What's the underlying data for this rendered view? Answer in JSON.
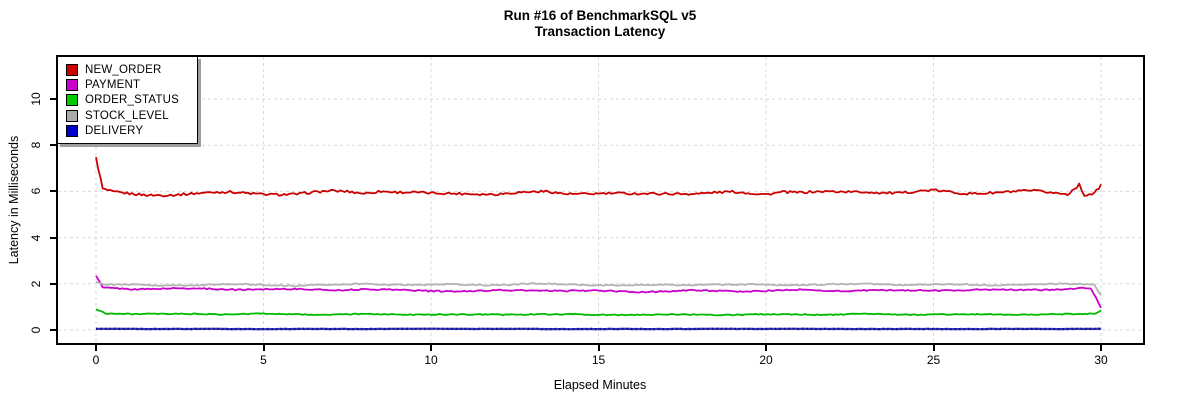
{
  "title": "Run #16 of BenchmarkSQL v5",
  "subtitle": "Transaction Latency",
  "x_axis": {
    "label": "Elapsed Minutes",
    "ticks": [
      0,
      5,
      10,
      15,
      20,
      25,
      30
    ]
  },
  "y_axis": {
    "label": "Latency in Milliseconds",
    "ticks": [
      0,
      2,
      4,
      6,
      8,
      10
    ]
  },
  "legend": {
    "position": "topleft",
    "items": [
      {
        "label": "NEW_ORDER",
        "color": "#cc0000"
      },
      {
        "label": "PAYMENT",
        "color": "#cc00cc"
      },
      {
        "label": "ORDER_STATUS",
        "color": "#00cc00"
      },
      {
        "label": "STOCK_LEVEL",
        "color": "#aaaaaa"
      },
      {
        "label": "DELIVERY",
        "color": "#0000cc"
      }
    ]
  },
  "colors": {
    "grid": "#d9d9d9",
    "plot_border": "#000000",
    "legend_shadow": "#9e9e9e"
  },
  "chart_data": {
    "type": "line",
    "title": "Run #16 of BenchmarkSQL v5",
    "subtitle": "Transaction Latency",
    "xlabel": "Elapsed Minutes",
    "ylabel": "Latency in Milliseconds",
    "xlim": [
      -1.15,
      31.4
    ],
    "ylim": [
      -0.65,
      11.8
    ],
    "x_ticks": [
      0,
      5,
      10,
      15,
      20,
      25,
      30
    ],
    "y_ticks": [
      0,
      2,
      4,
      6,
      8,
      10
    ],
    "grid": "dashed",
    "legend_position": "topleft",
    "series": [
      {
        "name": "NEW_ORDER",
        "color": "#cc0000",
        "width": 1.8,
        "noise": 0.05,
        "wobble": 0.03,
        "points": [
          [
            0,
            7.45
          ],
          [
            0.2,
            6.1
          ],
          [
            0.5,
            5.95
          ],
          [
            1,
            5.88
          ],
          [
            1.5,
            5.84
          ],
          [
            2,
            5.86
          ],
          [
            3,
            5.92
          ],
          [
            4,
            5.95
          ],
          [
            5,
            5.9
          ],
          [
            6,
            5.88
          ],
          [
            7,
            6.0
          ],
          [
            7.5,
            6.0
          ],
          [
            8,
            5.94
          ],
          [
            8.5,
            6.03
          ],
          [
            9,
            5.96
          ],
          [
            10,
            5.9
          ],
          [
            11,
            5.93
          ],
          [
            12,
            5.88
          ],
          [
            13,
            5.96
          ],
          [
            13.5,
            6.0
          ],
          [
            14,
            5.92
          ],
          [
            15,
            5.9
          ],
          [
            16,
            5.88
          ],
          [
            17,
            5.93
          ],
          [
            18,
            5.9
          ],
          [
            19,
            5.96
          ],
          [
            20,
            5.9
          ],
          [
            20.5,
            6.0
          ],
          [
            21,
            5.95
          ],
          [
            22,
            5.97
          ],
          [
            23,
            6.0
          ],
          [
            24,
            5.92
          ],
          [
            25,
            6.03
          ],
          [
            26,
            5.93
          ],
          [
            27,
            5.95
          ],
          [
            28,
            6.0
          ],
          [
            28.5,
            5.96
          ],
          [
            29,
            5.9
          ],
          [
            29.35,
            6.32
          ],
          [
            29.5,
            5.86
          ],
          [
            29.8,
            5.92
          ],
          [
            30,
            6.27
          ]
        ]
      },
      {
        "name": "PAYMENT",
        "color": "#cc00cc",
        "width": 1.8,
        "noise": 0.028,
        "wobble": 0.02,
        "points": [
          [
            0,
            2.35
          ],
          [
            0.2,
            1.82
          ],
          [
            1,
            1.78
          ],
          [
            2,
            1.8
          ],
          [
            3,
            1.78
          ],
          [
            4,
            1.76
          ],
          [
            5,
            1.78
          ],
          [
            6,
            1.75
          ],
          [
            7,
            1.74
          ],
          [
            8,
            1.77
          ],
          [
            9,
            1.72
          ],
          [
            10,
            1.7
          ],
          [
            11,
            1.68
          ],
          [
            12,
            1.7
          ],
          [
            13,
            1.72
          ],
          [
            14,
            1.7
          ],
          [
            15,
            1.68
          ],
          [
            16,
            1.66
          ],
          [
            17,
            1.68
          ],
          [
            18,
            1.7
          ],
          [
            19,
            1.68
          ],
          [
            20,
            1.7
          ],
          [
            21,
            1.72
          ],
          [
            22,
            1.7
          ],
          [
            23,
            1.72
          ],
          [
            24,
            1.7
          ],
          [
            25,
            1.72
          ],
          [
            26,
            1.74
          ],
          [
            27,
            1.72
          ],
          [
            28,
            1.75
          ],
          [
            29,
            1.78
          ],
          [
            29.7,
            1.8
          ],
          [
            30,
            0.95
          ]
        ]
      },
      {
        "name": "ORDER_STATUS",
        "color": "#00bb00",
        "width": 1.8,
        "noise": 0.022,
        "wobble": 0.012,
        "points": [
          [
            0,
            0.9
          ],
          [
            0.3,
            0.73
          ],
          [
            1,
            0.7
          ],
          [
            2,
            0.68
          ],
          [
            3,
            0.7
          ],
          [
            4,
            0.68
          ],
          [
            5,
            0.7
          ],
          [
            6,
            0.68
          ],
          [
            7,
            0.67
          ],
          [
            8,
            0.68
          ],
          [
            9,
            0.67
          ],
          [
            10,
            0.68
          ],
          [
            11,
            0.66
          ],
          [
            12,
            0.67
          ],
          [
            13,
            0.68
          ],
          [
            14,
            0.67
          ],
          [
            15,
            0.66
          ],
          [
            16,
            0.67
          ],
          [
            17,
            0.66
          ],
          [
            18,
            0.67
          ],
          [
            19,
            0.66
          ],
          [
            20,
            0.67
          ],
          [
            21,
            0.68
          ],
          [
            22,
            0.67
          ],
          [
            23,
            0.68
          ],
          [
            24,
            0.67
          ],
          [
            25,
            0.68
          ],
          [
            26,
            0.67
          ],
          [
            27,
            0.68
          ],
          [
            28,
            0.67
          ],
          [
            29,
            0.68
          ],
          [
            29.8,
            0.7
          ],
          [
            30,
            0.85
          ]
        ]
      },
      {
        "name": "STOCK_LEVEL",
        "color": "#b3b3b3",
        "width": 1.8,
        "noise": 0.026,
        "wobble": 0.016,
        "points": [
          [
            0,
            2.1
          ],
          [
            0.3,
            1.97
          ],
          [
            1,
            1.95
          ],
          [
            2,
            1.93
          ],
          [
            3,
            1.95
          ],
          [
            4,
            1.97
          ],
          [
            5,
            1.95
          ],
          [
            6,
            1.93
          ],
          [
            7,
            1.95
          ],
          [
            8,
            2.0
          ],
          [
            9,
            1.97
          ],
          [
            10,
            1.95
          ],
          [
            11,
            1.97
          ],
          [
            12,
            1.95
          ],
          [
            13,
            2.0
          ],
          [
            14,
            1.97
          ],
          [
            15,
            1.95
          ],
          [
            16,
            1.93
          ],
          [
            17,
            1.95
          ],
          [
            18,
            1.97
          ],
          [
            19,
            1.95
          ],
          [
            20,
            1.97
          ],
          [
            21,
            1.95
          ],
          [
            22,
            1.97
          ],
          [
            23,
            2.0
          ],
          [
            24,
            1.97
          ],
          [
            25,
            1.95
          ],
          [
            26,
            1.97
          ],
          [
            27,
            1.95
          ],
          [
            28,
            1.97
          ],
          [
            29,
            2.0
          ],
          [
            29.8,
            2.0
          ],
          [
            30,
            1.5
          ]
        ]
      },
      {
        "name": "DELIVERY",
        "color": "#3333bb",
        "width": 2.2,
        "noise": 0.006,
        "wobble": 0.003,
        "dots": true,
        "dot_color": "#10108a",
        "points": [
          [
            0,
            0.05
          ],
          [
            5,
            0.04
          ],
          [
            10,
            0.05
          ],
          [
            15,
            0.04
          ],
          [
            20,
            0.05
          ],
          [
            25,
            0.04
          ],
          [
            30,
            0.05
          ]
        ]
      }
    ]
  }
}
